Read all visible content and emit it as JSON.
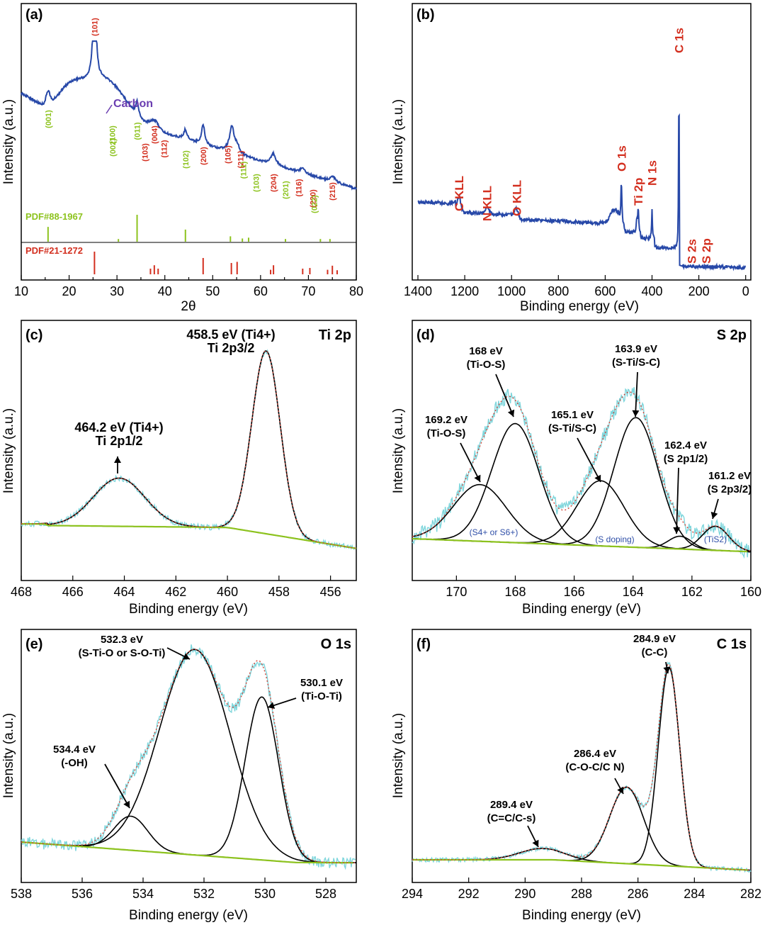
{
  "figure": {
    "colors": {
      "blue": "#2748a8",
      "green": "#8dc31e",
      "red": "#d32f1f",
      "cyan": "#7fd6dc",
      "purple": "#6a3db0",
      "black": "#000000",
      "fitdot": "#d0483c",
      "navy": "#2f4fa8"
    }
  },
  "chart_data": [
    {
      "id": "a",
      "type": "line",
      "panel_label": "(a)",
      "xlabel": "2θ",
      "ylabel": "Intensity (a.u.)",
      "xlim": [
        10,
        80
      ],
      "xticks": [
        10,
        20,
        30,
        40,
        50,
        60,
        70,
        80
      ],
      "annotations": {
        "carbon": "Carbon",
        "ref_green": "PDF#88-1967",
        "ref_red": "PDF#21-1272"
      },
      "peaks_red": [
        {
          "x": 25.3,
          "label": "(101)"
        },
        {
          "x": 37.0,
          "label": "(103)"
        },
        {
          "x": 37.8,
          "label": "(004)"
        },
        {
          "x": 38.6,
          "label": "(112)"
        },
        {
          "x": 48.0,
          "label": "(200)"
        },
        {
          "x": 53.9,
          "label": "(105)"
        },
        {
          "x": 55.1,
          "label": "(211)"
        },
        {
          "x": 62.7,
          "label": "(204)"
        },
        {
          "x": 68.8,
          "label": "(116)"
        },
        {
          "x": 70.3,
          "label": "(220)"
        },
        {
          "x": 75.0,
          "label": "(215)"
        }
      ],
      "peaks_green": [
        {
          "x": 15.6,
          "label": "(001)"
        },
        {
          "x": 29.6,
          "label": "(100)"
        },
        {
          "x": 30.3,
          "label": "(002)"
        },
        {
          "x": 34.2,
          "label": "(011)"
        },
        {
          "x": 44.3,
          "label": "(102)"
        },
        {
          "x": 57.0,
          "label": "(111)"
        },
        {
          "x": 58.2,
          "label": "(103)"
        },
        {
          "x": 65.2,
          "label": "(201)"
        },
        {
          "x": 71.2,
          "label": "(022)"
        }
      ],
      "ref_green_sticks": [
        [
          15.6,
          0.55
        ],
        [
          30.3,
          0.1
        ],
        [
          34.2,
          1.0
        ],
        [
          44.3,
          0.45
        ],
        [
          53.7,
          0.2
        ],
        [
          56.2,
          0.12
        ],
        [
          57.5,
          0.15
        ],
        [
          65.2,
          0.1
        ],
        [
          72.5,
          0.1
        ],
        [
          74.5,
          0.1
        ]
      ],
      "ref_red_sticks": [
        [
          25.3,
          1.0
        ],
        [
          37.0,
          0.25
        ],
        [
          37.8,
          0.4
        ],
        [
          38.6,
          0.25
        ],
        [
          48.0,
          0.72
        ],
        [
          53.9,
          0.5
        ],
        [
          55.1,
          0.55
        ],
        [
          62.1,
          0.2
        ],
        [
          62.7,
          0.4
        ],
        [
          68.8,
          0.25
        ],
        [
          70.3,
          0.28
        ],
        [
          74.0,
          0.2
        ],
        [
          75.0,
          0.38
        ],
        [
          76.0,
          0.18
        ]
      ]
    },
    {
      "id": "b",
      "type": "line",
      "panel_label": "(b)",
      "xlabel": "Binding energy (eV)",
      "ylabel": "Intensity (a.u.)",
      "xlim": [
        1400,
        0
      ],
      "xticks": [
        1400,
        1200,
        1000,
        800,
        600,
        400,
        200,
        0
      ],
      "peak_labels": [
        {
          "x": 1225,
          "label": "C KLL"
        },
        {
          "x": 1105,
          "label": "N KLL"
        },
        {
          "x": 978,
          "label": "O KLL"
        },
        {
          "x": 530,
          "label": "O 1s"
        },
        {
          "x": 459,
          "label": "Ti 2p"
        },
        {
          "x": 400,
          "label": "N 1s"
        },
        {
          "x": 285,
          "label": "C 1s"
        },
        {
          "x": 230,
          "label": "S 2s"
        },
        {
          "x": 164,
          "label": "S 2p"
        }
      ]
    },
    {
      "id": "c",
      "type": "line",
      "panel_label": "(c)",
      "title": "Ti 2p",
      "xlabel": "Binding energy (eV)",
      "ylabel": "Intensity (a.u.)",
      "xlim": [
        468,
        455
      ],
      "xticks": [
        468,
        466,
        464,
        462,
        460,
        458,
        456
      ],
      "components": [
        {
          "center": 464.2,
          "label": "464.2 eV (Ti4+)",
          "sublabel": "Ti 2p1/2"
        },
        {
          "center": 458.5,
          "label": "458.5 eV (Ti4+)",
          "sublabel": "Ti 2p3/2"
        }
      ]
    },
    {
      "id": "d",
      "type": "line",
      "panel_label": "(d)",
      "title": "S 2p",
      "xlabel": "Binding energy (eV)",
      "ylabel": "Intensity (a.u.)",
      "xlim": [
        171.5,
        160
      ],
      "xticks": [
        170,
        168,
        166,
        164,
        162,
        160
      ],
      "components": [
        {
          "center": 169.2,
          "label": "169.2 eV",
          "sublabel": "(Ti-O-S)"
        },
        {
          "center": 168.0,
          "label": "168 eV",
          "sublabel": "(Ti-O-S)"
        },
        {
          "center": 165.1,
          "label": "165.1 eV",
          "sublabel": "(S-Ti/S-C)"
        },
        {
          "center": 163.9,
          "label": "163.9 eV",
          "sublabel": "(S-Ti/S-C)"
        },
        {
          "center": 162.4,
          "label": "162.4 eV",
          "sublabel": "(S 2p1/2)"
        },
        {
          "center": 161.2,
          "label": "161.2 eV",
          "sublabel": "(S 2p3/2)"
        }
      ],
      "group_labels": [
        "(S4+ or S6+)",
        "(S doping)",
        "(TiS2)"
      ]
    },
    {
      "id": "e",
      "type": "line",
      "panel_label": "(e)",
      "title": "O 1s",
      "xlabel": "Binding energy (eV)",
      "ylabel": "Intensity (a.u.)",
      "xlim": [
        538,
        527
      ],
      "xticks": [
        538,
        536,
        534,
        532,
        530,
        528
      ],
      "components": [
        {
          "center": 534.4,
          "label": "534.4 eV",
          "sublabel": "(-OH)"
        },
        {
          "center": 532.3,
          "label": "532.3 eV",
          "sublabel": "(S-Ti-O or S-O-Ti)"
        },
        {
          "center": 530.1,
          "label": "530.1 eV",
          "sublabel": "(Ti-O-Ti)"
        }
      ]
    },
    {
      "id": "f",
      "type": "line",
      "panel_label": "(f)",
      "title": "C 1s",
      "xlabel": "Binding energy (eV)",
      "ylabel": "Intensity (a.u.)",
      "xlim": [
        294,
        282
      ],
      "xticks": [
        294,
        292,
        290,
        288,
        286,
        284,
        282
      ],
      "components": [
        {
          "center": 289.4,
          "label": "289.4 eV",
          "sublabel": "(C=C/C-s)"
        },
        {
          "center": 286.4,
          "label": "286.4 eV",
          "sublabel": "(C-O-C/C N)"
        },
        {
          "center": 284.9,
          "label": "284.9 eV",
          "sublabel": "(C-C)"
        }
      ]
    }
  ]
}
